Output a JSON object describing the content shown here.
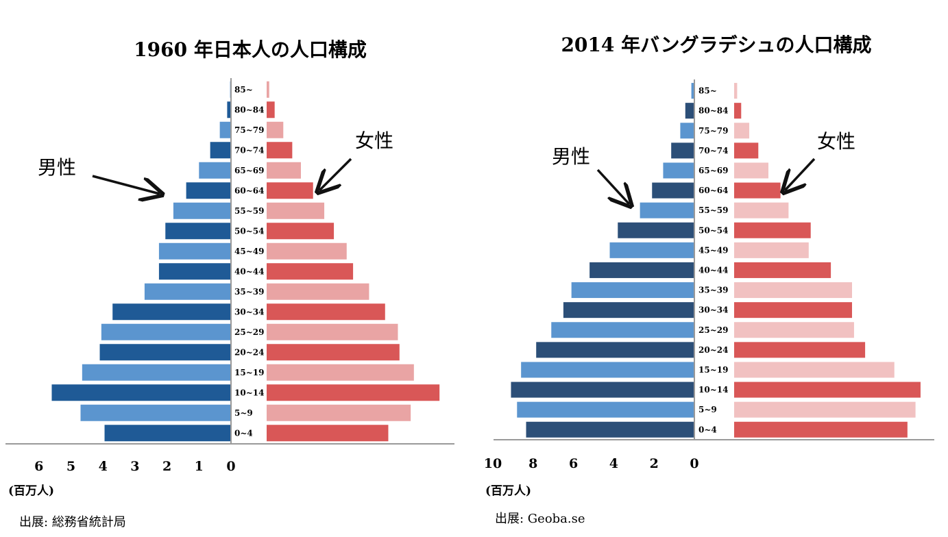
{
  "chart_data": [
    {
      "type": "bar",
      "title": "1960 年日本人の人口構成",
      "categories": [
        "0~4",
        "5~9",
        "10~14",
        "15~19",
        "20~24",
        "25~29",
        "30~34",
        "35~39",
        "40~44",
        "45~49",
        "50~54",
        "55~59",
        "60~64",
        "65~69",
        "70~74",
        "75~79",
        "80~84",
        "85~"
      ],
      "series": [
        {
          "name": "男性",
          "values": [
            3.95,
            4.7,
            5.6,
            4.65,
            4.1,
            4.05,
            3.7,
            2.7,
            2.25,
            2.25,
            2.05,
            1.8,
            1.4,
            1.0,
            0.65,
            0.35,
            0.12,
            0.03
          ]
        },
        {
          "name": "女性",
          "values": [
            3.8,
            4.5,
            5.4,
            4.6,
            4.15,
            4.1,
            3.7,
            3.2,
            2.7,
            2.5,
            2.1,
            1.8,
            1.45,
            1.07,
            0.8,
            0.52,
            0.25,
            0.08
          ]
        }
      ],
      "xticks": [
        "6",
        "5",
        "4",
        "3",
        "2",
        "1",
        "0"
      ],
      "xlim": [
        0,
        6
      ],
      "unit_label": "(百万人)",
      "source": "出展:  総務省統計局",
      "colors": {
        "male_dark": "#1f5a96",
        "male_light": "#5b95cf",
        "female_dark": "#d95757",
        "female_light": "#e9a4a4"
      }
    },
    {
      "type": "bar",
      "title": "2014 年バングラデシュの人口構成",
      "categories": [
        "0~4",
        "5~9",
        "10~14",
        "15~19",
        "20~24",
        "25~29",
        "30~34",
        "35~39",
        "40~44",
        "45~49",
        "50~54",
        "55~59",
        "60~64",
        "65~69",
        "70~74",
        "75~79",
        "80~84",
        "85~"
      ],
      "series": [
        {
          "name": "男性",
          "values": [
            8.35,
            8.8,
            9.1,
            8.6,
            7.85,
            7.1,
            6.5,
            6.1,
            5.2,
            4.2,
            3.8,
            2.7,
            2.1,
            1.55,
            1.15,
            0.7,
            0.45,
            0.15
          ]
        },
        {
          "name": "女性",
          "values": [
            8.6,
            9.0,
            9.25,
            7.95,
            6.5,
            5.95,
            5.85,
            5.85,
            4.8,
            3.7,
            3.8,
            2.7,
            2.3,
            1.7,
            1.2,
            0.75,
            0.35,
            0.15
          ]
        }
      ],
      "xticks": [
        "10",
        "8",
        "6",
        "4",
        "2",
        "0"
      ],
      "xlim": [
        0,
        10
      ],
      "unit_label": "(百万人)",
      "source": "出展: Geoba.se",
      "colors": {
        "male_dark": "#2c4f78",
        "male_light": "#5b95cf",
        "female_dark": "#d95757",
        "female_light": "#f1c1c1"
      }
    }
  ],
  "annotations": {
    "male": "男性",
    "female": "女性"
  }
}
